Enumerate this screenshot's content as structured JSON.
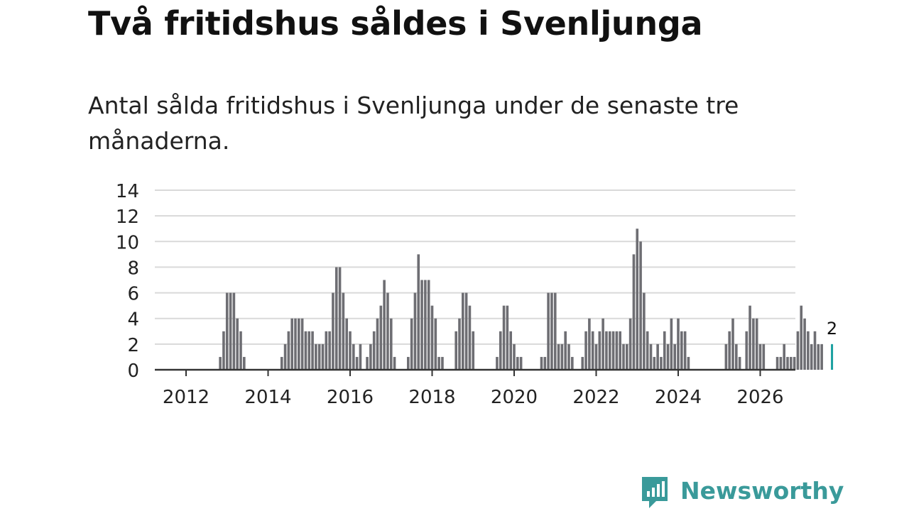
{
  "title": "Två fritidshus såldes i Svenljunga",
  "subtitle": "Antal sålda fritidshus i Svenljunga under de senaste tre månaderna.",
  "brand": {
    "name": "Newsworthy",
    "color": "#3a9a9a",
    "icon": "newsworthy-logo-icon"
  },
  "colors": {
    "bar": "#6e6e73",
    "highlight": "#1aa0a0",
    "grid": "#d9d9d9",
    "axis": "#333333",
    "text": "#222222"
  },
  "chart_data": {
    "type": "bar",
    "title": "Två fritidshus såldes i Svenljunga",
    "subtitle": "Antal sålda fritidshus i Svenljunga under de senaste tre månaderna.",
    "xlabel": "",
    "ylabel": "",
    "ylim": [
      0,
      14
    ],
    "yticks": [
      0,
      2,
      4,
      6,
      8,
      10,
      12,
      14
    ],
    "xticks": [
      "2012",
      "2014",
      "2016",
      "2018",
      "2020",
      "2022",
      "2024",
      "2026"
    ],
    "grid": true,
    "legend": "none",
    "start": "2012-01",
    "frequency": "monthly",
    "values": [
      0,
      0,
      0,
      0,
      0,
      0,
      0,
      0,
      0,
      0,
      1,
      3,
      6,
      6,
      6,
      4,
      3,
      1,
      0,
      0,
      0,
      0,
      0,
      0,
      0,
      0,
      0,
      0,
      1,
      2,
      3,
      4,
      4,
      4,
      4,
      3,
      3,
      3,
      2,
      2,
      2,
      3,
      3,
      6,
      8,
      8,
      6,
      4,
      3,
      2,
      1,
      2,
      0,
      1,
      2,
      3,
      4,
      5,
      7,
      6,
      4,
      1,
      0,
      0,
      0,
      1,
      4,
      6,
      9,
      7,
      7,
      7,
      5,
      4,
      1,
      1,
      0,
      0,
      0,
      3,
      4,
      6,
      6,
      5,
      3,
      0,
      0,
      0,
      0,
      0,
      0,
      1,
      3,
      5,
      5,
      3,
      2,
      1,
      1,
      0,
      0,
      0,
      0,
      0,
      1,
      1,
      6,
      6,
      6,
      2,
      2,
      3,
      2,
      1,
      0,
      0,
      1,
      3,
      4,
      3,
      2,
      3,
      4,
      3,
      3,
      3,
      3,
      3,
      2,
      2,
      4,
      9,
      11,
      10,
      6,
      3,
      2,
      1,
      2,
      1,
      3,
      2,
      4,
      2,
      4,
      3,
      3,
      1,
      0,
      0,
      0,
      0,
      0,
      0,
      0,
      0,
      0,
      0,
      2,
      3,
      4,
      2,
      1,
      0,
      3,
      5,
      4,
      4,
      2,
      2,
      0,
      0,
      0,
      1,
      1,
      2,
      1,
      1,
      1,
      3,
      5,
      4,
      3,
      2,
      3,
      2,
      2,
      0,
      0,
      2
    ],
    "highlight_label": "2"
  }
}
